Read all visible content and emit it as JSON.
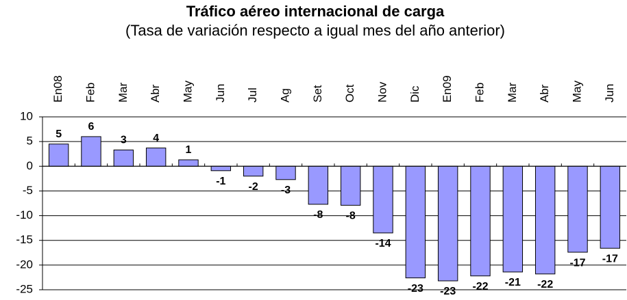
{
  "chart_data": {
    "type": "bar",
    "title": "Tráfico aéreo internacional de carga",
    "subtitle": "(Tasa de variación respecto a igual mes del año anterior)",
    "categories": [
      "En08",
      "Feb",
      "Mar",
      "Abr",
      "May",
      "Jun",
      "Jul",
      "Ag",
      "Set",
      "Oct",
      "Nov",
      "Dic",
      "En09",
      "Feb",
      "Mar",
      "Abr",
      "May",
      "Jun"
    ],
    "values": [
      4.5,
      6,
      3.3,
      3.7,
      1.3,
      -0.9,
      -2,
      -2.7,
      -7.7,
      -7.9,
      -13.5,
      -22.6,
      -23.2,
      -22.2,
      -21.4,
      -21.8,
      -17.4,
      -16.6
    ],
    "value_labels": [
      "5",
      "6",
      "3",
      "4",
      "1",
      "-1",
      "-2",
      "-3",
      "-8",
      "-8",
      "-14",
      "-23",
      "-23",
      "-22",
      "-21",
      "-22",
      "-17",
      "-17"
    ],
    "color": "#9999ff",
    "ylim": [
      -25,
      10
    ],
    "yticks": [
      10,
      5,
      0,
      -5,
      -10,
      -15,
      -20,
      -25
    ],
    "grid": true
  }
}
